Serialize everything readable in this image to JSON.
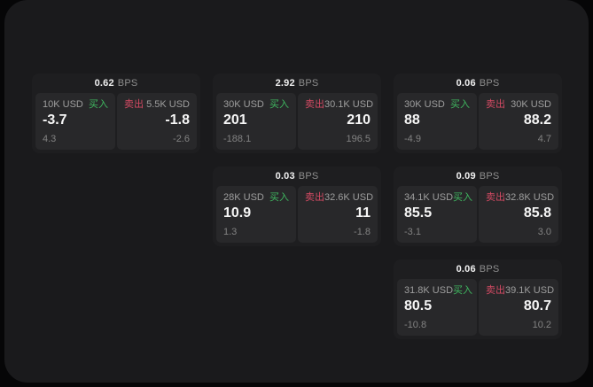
{
  "labels": {
    "bps_unit": "BPS",
    "buy": "买入",
    "sell": "卖出"
  },
  "colors": {
    "buy": "#3fb860",
    "sell": "#d34a63",
    "panel": "#1a1a1c",
    "card": "#1e1e20",
    "tile": "#28282a"
  },
  "cards": [
    {
      "bps": "0.62",
      "buy": {
        "amount": "10K USD",
        "value": "-3.7",
        "sub": "4.3"
      },
      "sell": {
        "amount": "5.5K USD",
        "value": "-1.8",
        "sub": "-2.6"
      }
    },
    {
      "bps": "2.92",
      "buy": {
        "amount": "30K USD",
        "value": "201",
        "sub": "-188.1"
      },
      "sell": {
        "amount": "30.1K USD",
        "value": "210",
        "sub": "196.5"
      }
    },
    {
      "bps": "0.06",
      "buy": {
        "amount": "30K USD",
        "value": "88",
        "sub": "-4.9"
      },
      "sell": {
        "amount": "30K USD",
        "value": "88.2",
        "sub": "4.7"
      }
    },
    {
      "bps": "0.03",
      "buy": {
        "amount": "28K USD",
        "value": "10.9",
        "sub": "1.3"
      },
      "sell": {
        "amount": "32.6K USD",
        "value": "11",
        "sub": "-1.8"
      }
    },
    {
      "bps": "0.09",
      "buy": {
        "amount": "34.1K USD",
        "value": "85.5",
        "sub": "-3.1"
      },
      "sell": {
        "amount": "32.8K USD",
        "value": "85.8",
        "sub": "3.0"
      }
    },
    {
      "bps": "0.06",
      "buy": {
        "amount": "31.8K USD",
        "value": "80.5",
        "sub": "-10.8"
      },
      "sell": {
        "amount": "39.1K USD",
        "value": "80.7",
        "sub": "10.2"
      }
    }
  ]
}
